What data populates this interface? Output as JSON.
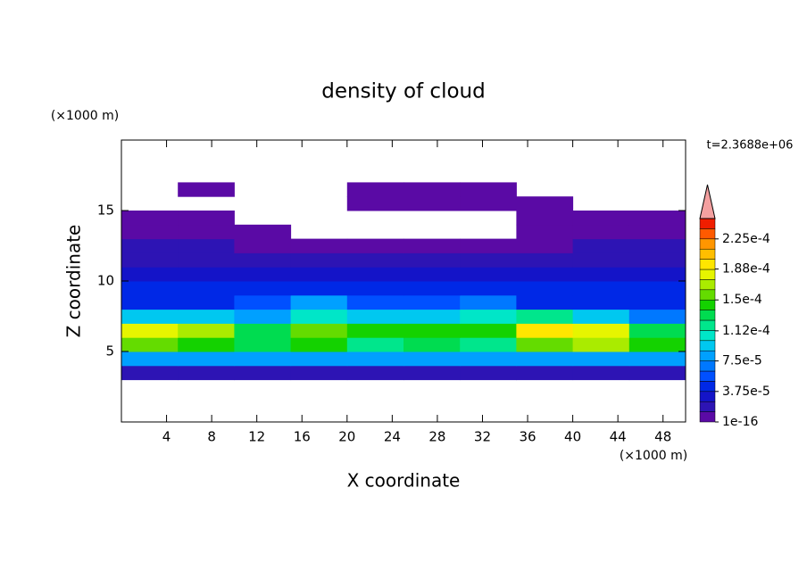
{
  "chart_data": {
    "type": "contour",
    "title": "density of cloud",
    "x_label": "X coordinate",
    "y_label": "Z coordinate",
    "x_unit": "(×1000 m)",
    "y_unit": "(×1000 m)",
    "annotation": "t=2.3688e+06",
    "xlim": [
      0,
      50
    ],
    "ylim": [
      0,
      20
    ],
    "xticks": [
      4,
      8,
      12,
      16,
      20,
      24,
      28,
      32,
      36,
      40,
      44,
      48
    ],
    "yticks": [
      5,
      10,
      15
    ],
    "x_edges": [
      0,
      5,
      10,
      15,
      20,
      25,
      30,
      35,
      40,
      45,
      50
    ],
    "y_edges": [
      3,
      4,
      5,
      6,
      7,
      8,
      9,
      10,
      11,
      12,
      13,
      14,
      15,
      16,
      17,
      18
    ],
    "values": [
      [
        2e-05,
        2e-05,
        2e-05,
        2e-05,
        2e-05,
        2e-05,
        2e-05,
        2e-05,
        2e-05,
        2e-05
      ],
      [
        8e-05,
        8e-05,
        8e-05,
        8e-05,
        8e-05,
        8e-05,
        8e-05,
        8e-05,
        8e-05,
        8e-05
      ],
      [
        0.00016,
        0.00015,
        0.00013,
        0.00014,
        0.00012,
        0.00013,
        0.00012,
        0.00016,
        0.00017,
        0.00015
      ],
      [
        0.00018,
        0.00017,
        0.00013,
        0.00016,
        0.00014,
        0.00015,
        0.00014,
        0.00019,
        0.00018,
        0.00013
      ],
      [
        0.0001,
        9e-05,
        8e-05,
        0.00011,
        0.0001,
        9e-05,
        0.00011,
        0.00012,
        0.0001,
        7e-05
      ],
      [
        5e-05,
        5e-05,
        6e-05,
        8e-05,
        6e-05,
        6e-05,
        7e-05,
        5e-05,
        5e-05,
        5e-05
      ],
      [
        4e-05,
        4e-05,
        4e-05,
        5e-05,
        5e-05,
        4e-05,
        5e-05,
        4e-05,
        4e-05,
        4e-05
      ],
      [
        3e-05,
        3e-05,
        3e-05,
        3e-05,
        3e-05,
        3e-05,
        3e-05,
        3e-05,
        3e-05,
        3e-05
      ],
      [
        2e-05,
        2e-05,
        2e-05,
        2e-05,
        2e-05,
        2e-05,
        2e-05,
        2e-05,
        2e-05,
        2e-05
      ],
      [
        1.5e-05,
        1.5e-05,
        1e-05,
        5e-06,
        5e-06,
        5e-06,
        5e-06,
        1e-05,
        1.5e-05,
        1.5e-05
      ],
      [
        1e-05,
        5e-06,
        5e-06,
        null,
        null,
        null,
        null,
        5e-06,
        1e-05,
        1e-05
      ],
      [
        5e-06,
        5e-06,
        null,
        null,
        null,
        null,
        null,
        5e-06,
        5e-06,
        5e-06
      ],
      [
        null,
        null,
        null,
        null,
        5e-06,
        5e-06,
        5e-06,
        5e-06,
        null,
        null
      ],
      [
        null,
        5e-06,
        null,
        null,
        5e-06,
        5e-06,
        5e-06,
        null,
        null,
        null
      ],
      [
        null,
        null,
        null,
        null,
        null,
        null,
        null,
        null,
        null,
        null
      ]
    ],
    "colorbar": {
      "lim": [
        1e-16,
        0.00025
      ],
      "ticks": [
        {
          "value": 1e-16,
          "label": "1e-16"
        },
        {
          "value": 3.75e-05,
          "label": "3.75e-5"
        },
        {
          "value": 7.5e-05,
          "label": "7.5e-5"
        },
        {
          "value": 0.000112,
          "label": "1.12e-4"
        },
        {
          "value": 0.00015,
          "label": "1.5e-4"
        },
        {
          "value": 0.000188,
          "label": "1.88e-4"
        },
        {
          "value": 0.000225,
          "label": "2.25e-4"
        }
      ],
      "colors": [
        "#5a0aa5",
        "#2d14b4",
        "#1414c8",
        "#0028e6",
        "#0050ff",
        "#0078ff",
        "#00a0ff",
        "#00c8f0",
        "#00e6c8",
        "#00e68c",
        "#00dc50",
        "#14d200",
        "#64dc00",
        "#aaeb00",
        "#e6f500",
        "#ffe600",
        "#ffbe00",
        "#ff9600",
        "#ff5a00",
        "#f01e00"
      ],
      "over_color": "#f4a0a0"
    }
  }
}
